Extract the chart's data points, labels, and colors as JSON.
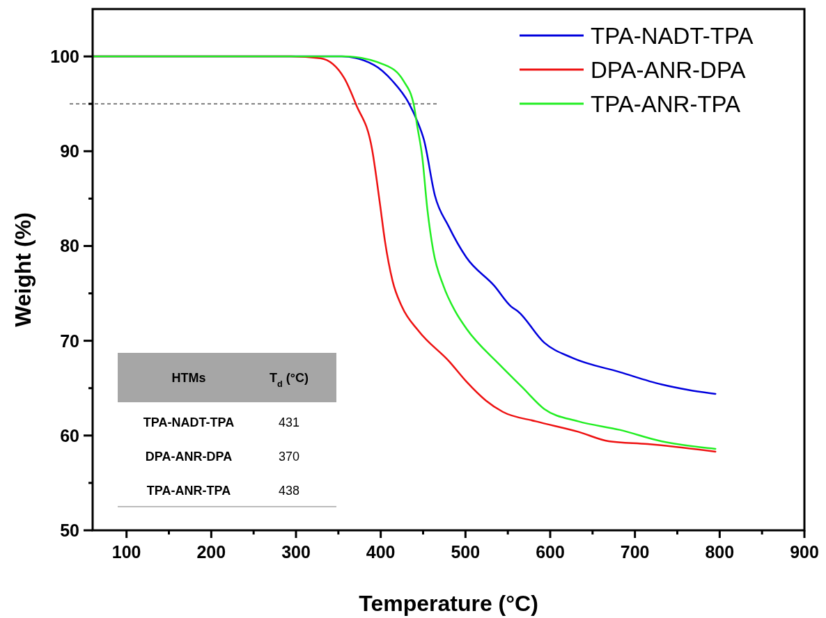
{
  "chart_data": {
    "type": "line",
    "xlabel": "Temperature (°C)",
    "ylabel": "Weight (%)",
    "xlim": [
      60,
      900
    ],
    "ylim": [
      50,
      105
    ],
    "xticks": [
      100,
      {
        "value": 150,
        "label": null
      },
      200,
      {
        "value": 250,
        "label": null
      },
      300,
      {
        "value": 350,
        "label": null
      },
      400,
      {
        "value": 450,
        "label": null
      },
      500,
      {
        "value": 550,
        "label": null
      },
      600,
      {
        "value": 650,
        "label": null
      },
      700,
      {
        "value": 750,
        "label": null
      },
      800,
      {
        "value": 850,
        "label": null
      },
      900
    ],
    "yticks": [
      50,
      {
        "value": 55,
        "label": null
      },
      60,
      {
        "value": 65,
        "label": null
      },
      70,
      {
        "value": 75,
        "label": null
      },
      80,
      {
        "value": 85,
        "label": null
      },
      90,
      {
        "value": 95,
        "label": null
      },
      100
    ],
    "legend": "top right",
    "grid": false,
    "line_style": "solid",
    "ref_lines": [
      {
        "axis": "y",
        "value": 95,
        "label": null,
        "color": "#000000",
        "line_style": "dashed"
      }
    ],
    "annotations": [
      "HTMs",
      "T$_{d}$ (°C)",
      "TPA-NADT-TPA",
      "431",
      "DPA-ANR-DPA",
      "370",
      "TPA-ANR-TPA",
      "438"
    ],
    "series": [
      {
        "name": "TPA-NADT-TPA",
        "color": "#0000dd",
        "x": [
          60,
          300,
          354,
          392,
          414,
          433,
          443,
          451,
          464,
          480,
          501,
          534,
          554,
          562,
          593,
          626,
          682,
          731,
          764,
          795
        ],
        "values": [
          100,
          100,
          100,
          99.1,
          97.4,
          95.1,
          93.2,
          91.2,
          85.3,
          82.1,
          78.8,
          75.8,
          73.6,
          73.1,
          69.8,
          68.2,
          66.7,
          65.4,
          64.8,
          64.4
        ]
      },
      {
        "name": "DPA-ANR-DPA",
        "color": "#ee1111",
        "x": [
          60,
          294,
          329,
          357,
          371,
          390,
          399,
          405,
          414,
          425,
          445,
          481,
          501,
          524,
          544,
          583,
          633,
          669,
          715,
          795
        ],
        "values": [
          100,
          100,
          99.8,
          97.7,
          94.9,
          90.1,
          84.5,
          80.5,
          76.3,
          73.6,
          71.0,
          67.8,
          65.7,
          63.7,
          62.5,
          61.5,
          60.4,
          59.4,
          59.1,
          58.3
        ]
      },
      {
        "name": "TPA-ANR-TPA",
        "color": "#22ee22",
        "x": [
          60,
          300,
          357,
          405,
          427,
          439,
          443,
          449,
          455,
          462,
          474,
          488,
          501,
          540,
          567,
          593,
          633,
          682,
          731,
          795
        ],
        "values": [
          100,
          100,
          100,
          99.1,
          97.4,
          94.9,
          92.7,
          89.4,
          83.9,
          79.5,
          75.8,
          73.1,
          71.3,
          67.5,
          65.1,
          62.8,
          61.5,
          60.6,
          59.4,
          58.6
        ]
      }
    ]
  }
}
